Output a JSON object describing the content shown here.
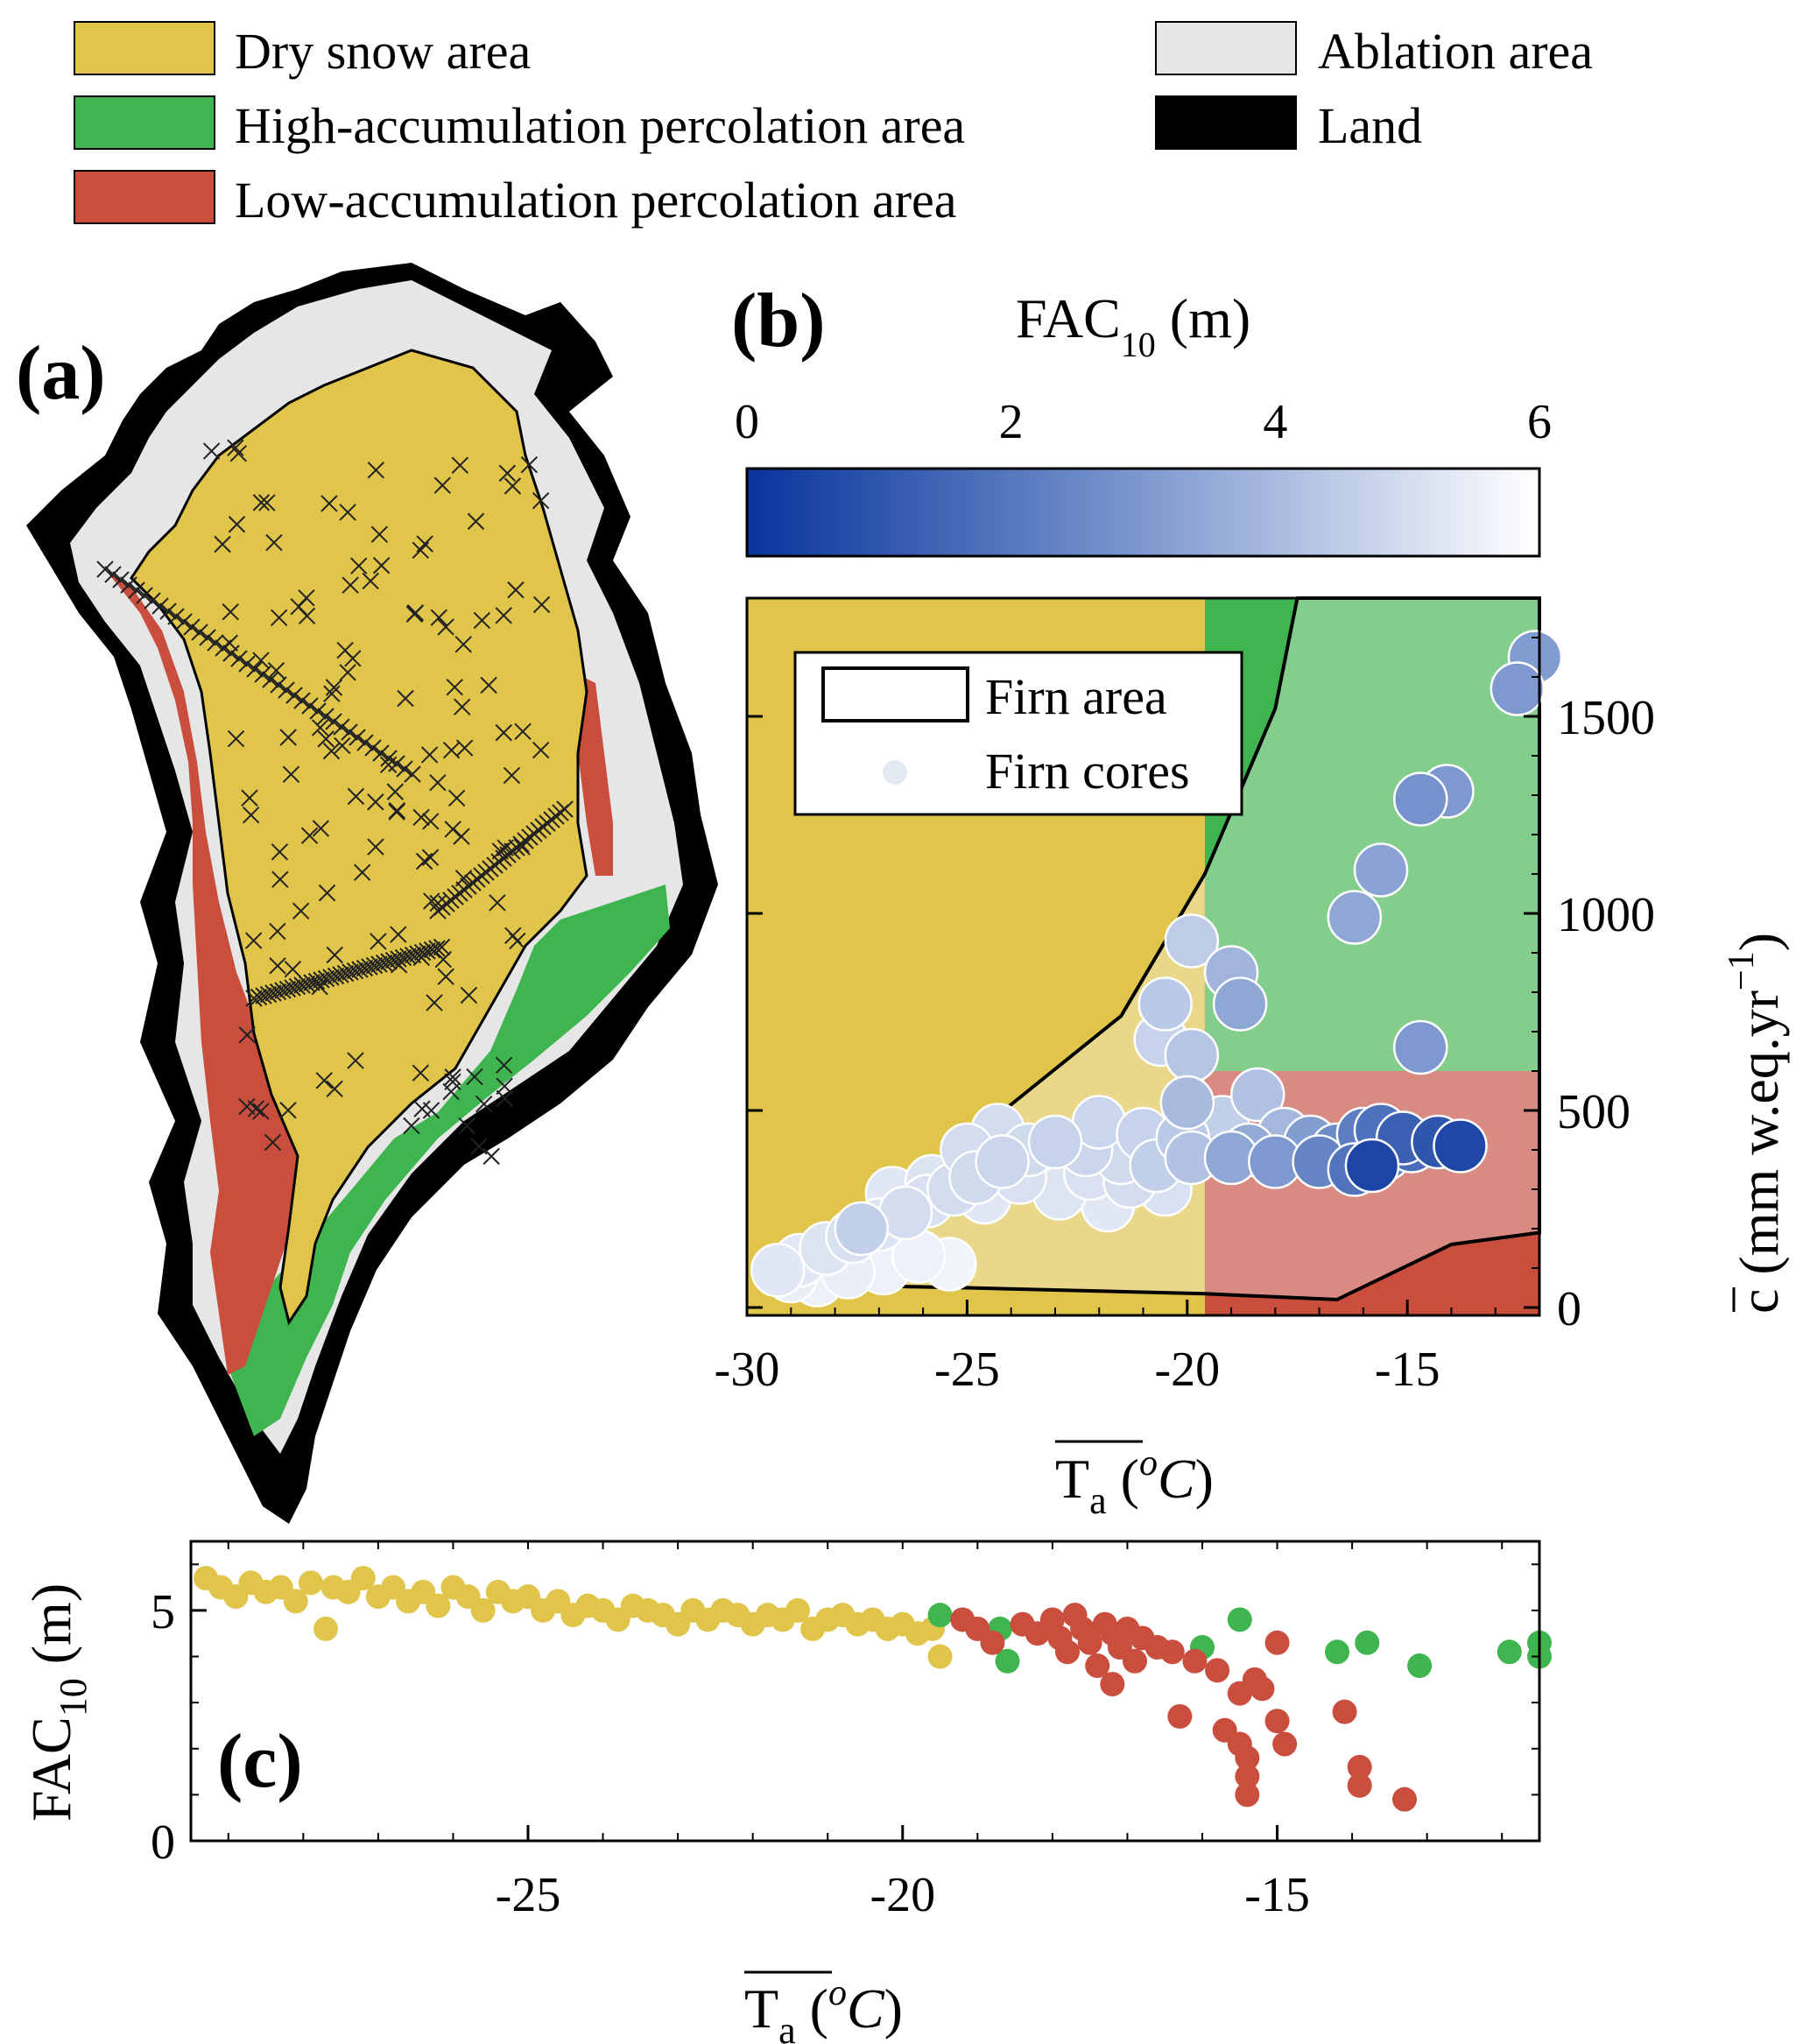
{
  "colors": {
    "dry_snow": "#E0C54A",
    "high_acc": "#3EB54E",
    "low_acc": "#C94E3E",
    "ablation": "#E6E6E6",
    "land": "#000000",
    "dry_snow_light": "#EAD88A",
    "high_acc_light": "#84CE8D",
    "low_acc_light": "#D98B83"
  },
  "legend": {
    "dry_snow": "Dry snow area",
    "high_acc": "High-accumulation percolation area",
    "low_acc": "Low-accumulation percolation area",
    "ablation": "Ablation area",
    "land": "Land"
  },
  "panel_a": {
    "label": "(a)"
  },
  "panel_b": {
    "label": "(b)",
    "colorbar": {
      "title_main": "FAC",
      "title_sub": "10",
      "title_unit": " (m)",
      "ticks": [
        "0",
        "2",
        "4",
        "6"
      ],
      "range": [
        0,
        6
      ],
      "color_low": "#08349C",
      "color_high": "#FFFFFF"
    },
    "legend": {
      "area": "Firn area",
      "cores": "Firn cores"
    },
    "xaxis": {
      "ticks": [
        "-30",
        "-25",
        "-20",
        "-15"
      ],
      "title_main": "T",
      "title_sub": "a",
      "title_unit": "C",
      "title_sup": "o"
    },
    "yaxis": {
      "ticks": [
        "0",
        "500",
        "1000",
        "1500"
      ],
      "title_c": "c",
      "title_units": " (mm w.eq.yr",
      "title_exp": "−1",
      "title_close": ")"
    }
  },
  "panel_c": {
    "label": "(c)",
    "xaxis": {
      "ticks": [
        "-25",
        "-20",
        "-15"
      ],
      "title_main": "T",
      "title_sub": "a",
      "title_unit": "C",
      "title_sup": "o"
    },
    "yaxis": {
      "ticks": [
        "0",
        "5"
      ],
      "title_main": "FAC",
      "title_sub": "10",
      "title_unit": " (m)"
    }
  },
  "chart_data": [
    {
      "type": "scatter",
      "panel": "b",
      "xlabel": "T_a (°C)",
      "ylabel": "c (mm w.eq.yr−1)",
      "xlim": [
        -30,
        -12
      ],
      "ylim": [
        -20,
        1800
      ],
      "color_by": "FAC10 (m)",
      "regions": [
        {
          "name": "Dry snow area",
          "x": [
            -30,
            -19.6
          ],
          "y": [
            -20,
            1800
          ]
        },
        {
          "name": "High-accumulation percolation area",
          "x": [
            -19.6,
            -12
          ],
          "y": [
            600,
            1800
          ]
        },
        {
          "name": "Low-accumulation percolation area",
          "x": [
            -19.6,
            -12
          ],
          "y": [
            -20,
            600
          ]
        }
      ],
      "firn_area_boundary": [
        [
          -29.6,
          60
        ],
        [
          -25,
          50
        ],
        [
          -19.6,
          35
        ],
        [
          -16.6,
          20
        ],
        [
          -14,
          160
        ],
        [
          -12,
          190
        ],
        [
          -12,
          1800
        ],
        [
          -17.5,
          1800
        ],
        [
          -18,
          1520
        ],
        [
          -19.6,
          1100
        ],
        [
          -21.5,
          740
        ],
        [
          -23.5,
          560
        ],
        [
          -25.5,
          380
        ],
        [
          -29.6,
          90
        ]
      ],
      "points": [
        {
          "x": -12.1,
          "y": 1650,
          "fac": 3.1
        },
        {
          "x": -12.5,
          "y": 1570,
          "fac": 3.0
        },
        {
          "x": -14.7,
          "y": 1290,
          "fac": 2.8
        },
        {
          "x": -14.1,
          "y": 1310,
          "fac": 3.0
        },
        {
          "x": -15.6,
          "y": 1110,
          "fac": 3.3
        },
        {
          "x": -16.2,
          "y": 990,
          "fac": 3.4
        },
        {
          "x": -19.9,
          "y": 930,
          "fac": 4.5
        },
        {
          "x": -19.0,
          "y": 850,
          "fac": 3.8
        },
        {
          "x": -18.8,
          "y": 770,
          "fac": 3.4
        },
        {
          "x": -20.5,
          "y": 770,
          "fac": 4.4
        },
        {
          "x": -20.6,
          "y": 680,
          "fac": 4.7
        },
        {
          "x": -19.9,
          "y": 640,
          "fac": 4.3
        },
        {
          "x": -14.7,
          "y": 660,
          "fac": 3.0
        },
        {
          "x": -20.0,
          "y": 520,
          "fac": 4.0
        },
        {
          "x": -18.4,
          "y": 540,
          "fac": 4.2
        },
        {
          "x": -19.2,
          "y": 470,
          "fac": 4.6
        },
        {
          "x": -17.8,
          "y": 440,
          "fac": 3.9
        },
        {
          "x": -18.6,
          "y": 400,
          "fac": 3.5
        },
        {
          "x": -17.2,
          "y": 420,
          "fac": 3.1
        },
        {
          "x": -16.6,
          "y": 400,
          "fac": 2.6
        },
        {
          "x": -16.0,
          "y": 440,
          "fac": 2.2
        },
        {
          "x": -15.6,
          "y": 450,
          "fac": 1.8
        },
        {
          "x": -15.1,
          "y": 430,
          "fac": 1.3
        },
        {
          "x": -14.9,
          "y": 410,
          "fac": 1.7
        },
        {
          "x": -14.3,
          "y": 420,
          "fac": 1.0
        },
        {
          "x": -13.8,
          "y": 410,
          "fac": 0.6
        },
        {
          "x": -15.8,
          "y": 360,
          "fac": 0.5
        },
        {
          "x": -17.0,
          "y": 370,
          "fac": 2.4
        },
        {
          "x": -16.2,
          "y": 350,
          "fac": 1.9
        },
        {
          "x": -15.5,
          "y": 390,
          "fac": 2.1
        },
        {
          "x": -18.0,
          "y": 370,
          "fac": 3.0
        },
        {
          "x": -19.0,
          "y": 380,
          "fac": 3.4
        },
        {
          "x": -19.9,
          "y": 380,
          "fac": 4.2
        },
        {
          "x": -20.7,
          "y": 360,
          "fac": 4.6
        },
        {
          "x": -21.5,
          "y": 380,
          "fac": 4.9
        },
        {
          "x": -22.3,
          "y": 400,
          "fac": 4.8
        },
        {
          "x": -23.0,
          "y": 420,
          "fac": 4.7
        },
        {
          "x": -23.6,
          "y": 400,
          "fac": 4.9
        },
        {
          "x": -24.2,
          "y": 370,
          "fac": 4.8
        },
        {
          "x": -24.8,
          "y": 330,
          "fac": 4.9
        },
        {
          "x": -25.3,
          "y": 300,
          "fac": 5.0
        },
        {
          "x": -25.9,
          "y": 270,
          "fac": 5.1
        },
        {
          "x": -26.4,
          "y": 240,
          "fac": 5.0
        },
        {
          "x": -27.0,
          "y": 210,
          "fac": 5.2
        },
        {
          "x": -27.6,
          "y": 180,
          "fac": 5.1
        },
        {
          "x": -28.2,
          "y": 150,
          "fac": 5.2
        },
        {
          "x": -28.8,
          "y": 120,
          "fac": 5.3
        },
        {
          "x": -29.3,
          "y": 95,
          "fac": 5.3
        },
        {
          "x": -29.0,
          "y": 80,
          "fac": 5.5
        },
        {
          "x": -28.4,
          "y": 70,
          "fac": 5.6
        },
        {
          "x": -27.7,
          "y": 90,
          "fac": 5.5
        },
        {
          "x": -26.9,
          "y": 100,
          "fac": 5.6
        },
        {
          "x": -26.1,
          "y": 130,
          "fac": 5.6
        },
        {
          "x": -25.4,
          "y": 110,
          "fac": 5.7
        },
        {
          "x": -27.4,
          "y": 200,
          "fac": 4.6
        },
        {
          "x": -26.7,
          "y": 290,
          "fac": 5.3
        },
        {
          "x": -25.8,
          "y": 320,
          "fac": 5.2
        },
        {
          "x": -24.6,
          "y": 280,
          "fac": 5.3
        },
        {
          "x": -23.8,
          "y": 330,
          "fac": 5.1
        },
        {
          "x": -23.0,
          "y": 350,
          "fac": 5.2
        },
        {
          "x": -22.2,
          "y": 340,
          "fac": 5.1
        },
        {
          "x": -21.3,
          "y": 320,
          "fac": 5.0
        },
        {
          "x": -20.5,
          "y": 300,
          "fac": 5.1
        },
        {
          "x": -21.8,
          "y": 260,
          "fac": 5.3
        },
        {
          "x": -22.9,
          "y": 290,
          "fac": 5.2
        },
        {
          "x": -20.1,
          "y": 430,
          "fac": 4.4
        },
        {
          "x": -21.0,
          "y": 440,
          "fac": 4.7
        },
        {
          "x": -22.0,
          "y": 470,
          "fac": 4.8
        },
        {
          "x": -24.3,
          "y": 450,
          "fac": 5.0
        },
        {
          "x": -25.0,
          "y": 400,
          "fac": 5.0
        }
      ]
    },
    {
      "type": "scatter",
      "panel": "c",
      "xlabel": "T_a (°C)",
      "ylabel": "FAC10 (m)",
      "xlim": [
        -29.5,
        -11.5
      ],
      "ylim": [
        0,
        6.5
      ],
      "series": [
        {
          "name": "Dry snow area",
          "points": [
            [
              -29.3,
              5.7
            ],
            [
              -29.1,
              5.5
            ],
            [
              -28.9,
              5.3
            ],
            [
              -28.7,
              5.6
            ],
            [
              -28.5,
              5.4
            ],
            [
              -28.3,
              5.5
            ],
            [
              -28.1,
              5.2
            ],
            [
              -27.9,
              5.6
            ],
            [
              -27.7,
              4.6
            ],
            [
              -27.6,
              5.5
            ],
            [
              -27.4,
              5.4
            ],
            [
              -27.2,
              5.7
            ],
            [
              -27.0,
              5.3
            ],
            [
              -26.8,
              5.5
            ],
            [
              -26.6,
              5.2
            ],
            [
              -26.4,
              5.4
            ],
            [
              -26.2,
              5.1
            ],
            [
              -26.0,
              5.5
            ],
            [
              -25.8,
              5.3
            ],
            [
              -25.6,
              5.0
            ],
            [
              -25.4,
              5.4
            ],
            [
              -25.2,
              5.2
            ],
            [
              -25.0,
              5.3
            ],
            [
              -24.8,
              5.0
            ],
            [
              -24.6,
              5.2
            ],
            [
              -24.4,
              4.9
            ],
            [
              -24.2,
              5.1
            ],
            [
              -24.0,
              5.0
            ],
            [
              -23.8,
              4.8
            ],
            [
              -23.6,
              5.1
            ],
            [
              -23.4,
              5.0
            ],
            [
              -23.2,
              4.9
            ],
            [
              -23.0,
              4.7
            ],
            [
              -22.8,
              5.0
            ],
            [
              -22.6,
              4.8
            ],
            [
              -22.4,
              5.0
            ],
            [
              -22.2,
              4.9
            ],
            [
              -22.0,
              4.7
            ],
            [
              -21.8,
              4.9
            ],
            [
              -21.6,
              4.8
            ],
            [
              -21.4,
              5.0
            ],
            [
              -21.2,
              4.6
            ],
            [
              -21.0,
              4.8
            ],
            [
              -20.8,
              4.9
            ],
            [
              -20.6,
              4.7
            ],
            [
              -20.4,
              4.8
            ],
            [
              -20.2,
              4.6
            ],
            [
              -20.0,
              4.7
            ],
            [
              -19.8,
              4.5
            ],
            [
              -19.6,
              4.6
            ],
            [
              -19.5,
              4.0
            ]
          ]
        },
        {
          "name": "High-accumulation percolation area",
          "points": [
            [
              -19.5,
              4.9
            ],
            [
              -18.7,
              4.6
            ],
            [
              -18.6,
              3.9
            ],
            [
              -16.0,
              4.2
            ],
            [
              -15.5,
              4.8
            ],
            [
              -14.2,
              4.1
            ],
            [
              -13.8,
              4.3
            ],
            [
              -13.1,
              3.8
            ],
            [
              -11.9,
              4.1
            ],
            [
              -11.5,
              4.3
            ],
            [
              -11.5,
              4.0
            ]
          ]
        },
        {
          "name": "Low-accumulation percolation area",
          "points": [
            [
              -19.2,
              4.8
            ],
            [
              -19.0,
              4.6
            ],
            [
              -18.8,
              4.3
            ],
            [
              -18.4,
              4.7
            ],
            [
              -18.2,
              4.5
            ],
            [
              -18.0,
              4.8
            ],
            [
              -17.9,
              4.4
            ],
            [
              -17.8,
              4.1
            ],
            [
              -17.7,
              4.9
            ],
            [
              -17.6,
              4.6
            ],
            [
              -17.5,
              4.3
            ],
            [
              -17.4,
              3.8
            ],
            [
              -17.3,
              4.7
            ],
            [
              -17.2,
              4.5
            ],
            [
              -17.2,
              3.4
            ],
            [
              -17.1,
              4.2
            ],
            [
              -17.0,
              4.6
            ],
            [
              -16.9,
              3.9
            ],
            [
              -16.8,
              4.4
            ],
            [
              -16.6,
              4.2
            ],
            [
              -16.4,
              4.1
            ],
            [
              -16.3,
              2.7
            ],
            [
              -16.1,
              3.9
            ],
            [
              -15.8,
              3.7
            ],
            [
              -15.7,
              2.4
            ],
            [
              -15.5,
              3.2
            ],
            [
              -15.5,
              2.1
            ],
            [
              -15.4,
              1.8
            ],
            [
              -15.4,
              1.4
            ],
            [
              -15.4,
              1.0
            ],
            [
              -15.3,
              3.5
            ],
            [
              -15.2,
              3.3
            ],
            [
              -15.0,
              4.3
            ],
            [
              -15.0,
              2.6
            ],
            [
              -14.9,
              2.1
            ],
            [
              -14.1,
              2.8
            ],
            [
              -13.9,
              1.6
            ],
            [
              -13.9,
              1.2
            ],
            [
              -13.3,
              0.9
            ]
          ]
        }
      ]
    }
  ]
}
